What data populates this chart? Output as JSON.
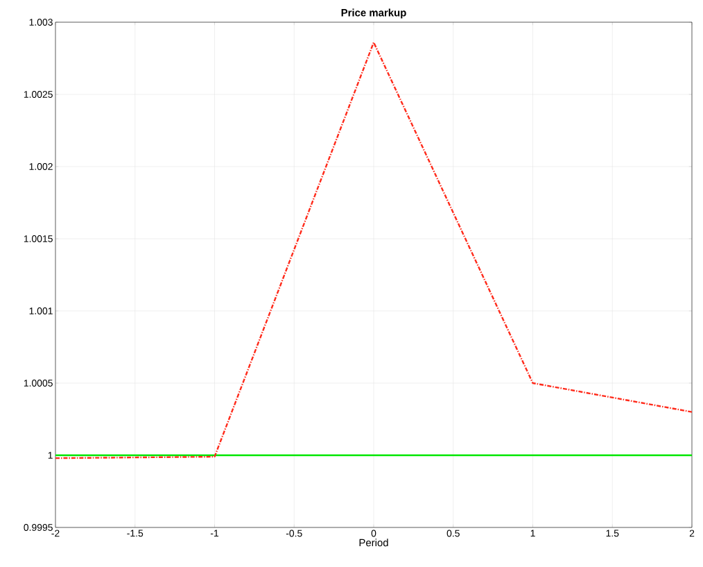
{
  "chart_data": {
    "type": "line",
    "title": "Price markup",
    "xlabel": "Period",
    "x": [
      -2,
      -1,
      0,
      1,
      2
    ],
    "series": [
      {
        "color": "#00e600",
        "values": [
          1,
          1,
          1,
          1,
          1
        ],
        "line_style": "solid"
      },
      {
        "color": "#ff2a1a",
        "values": [
          0.99998,
          0.99999,
          1.00286,
          1.0005,
          1.0003
        ],
        "line_style": "dashdot"
      }
    ],
    "xlim": [
      -2,
      2
    ],
    "xticks": [
      -2,
      -1.5,
      -1,
      -0.5,
      0,
      0.5,
      1,
      1.5,
      2
    ],
    "ylim": [
      0.9995,
      1.003
    ],
    "yticks": [
      0.9995,
      1,
      1.0005,
      1.001,
      1.0015,
      1.002,
      1.0025,
      1.003
    ],
    "grid": true
  }
}
